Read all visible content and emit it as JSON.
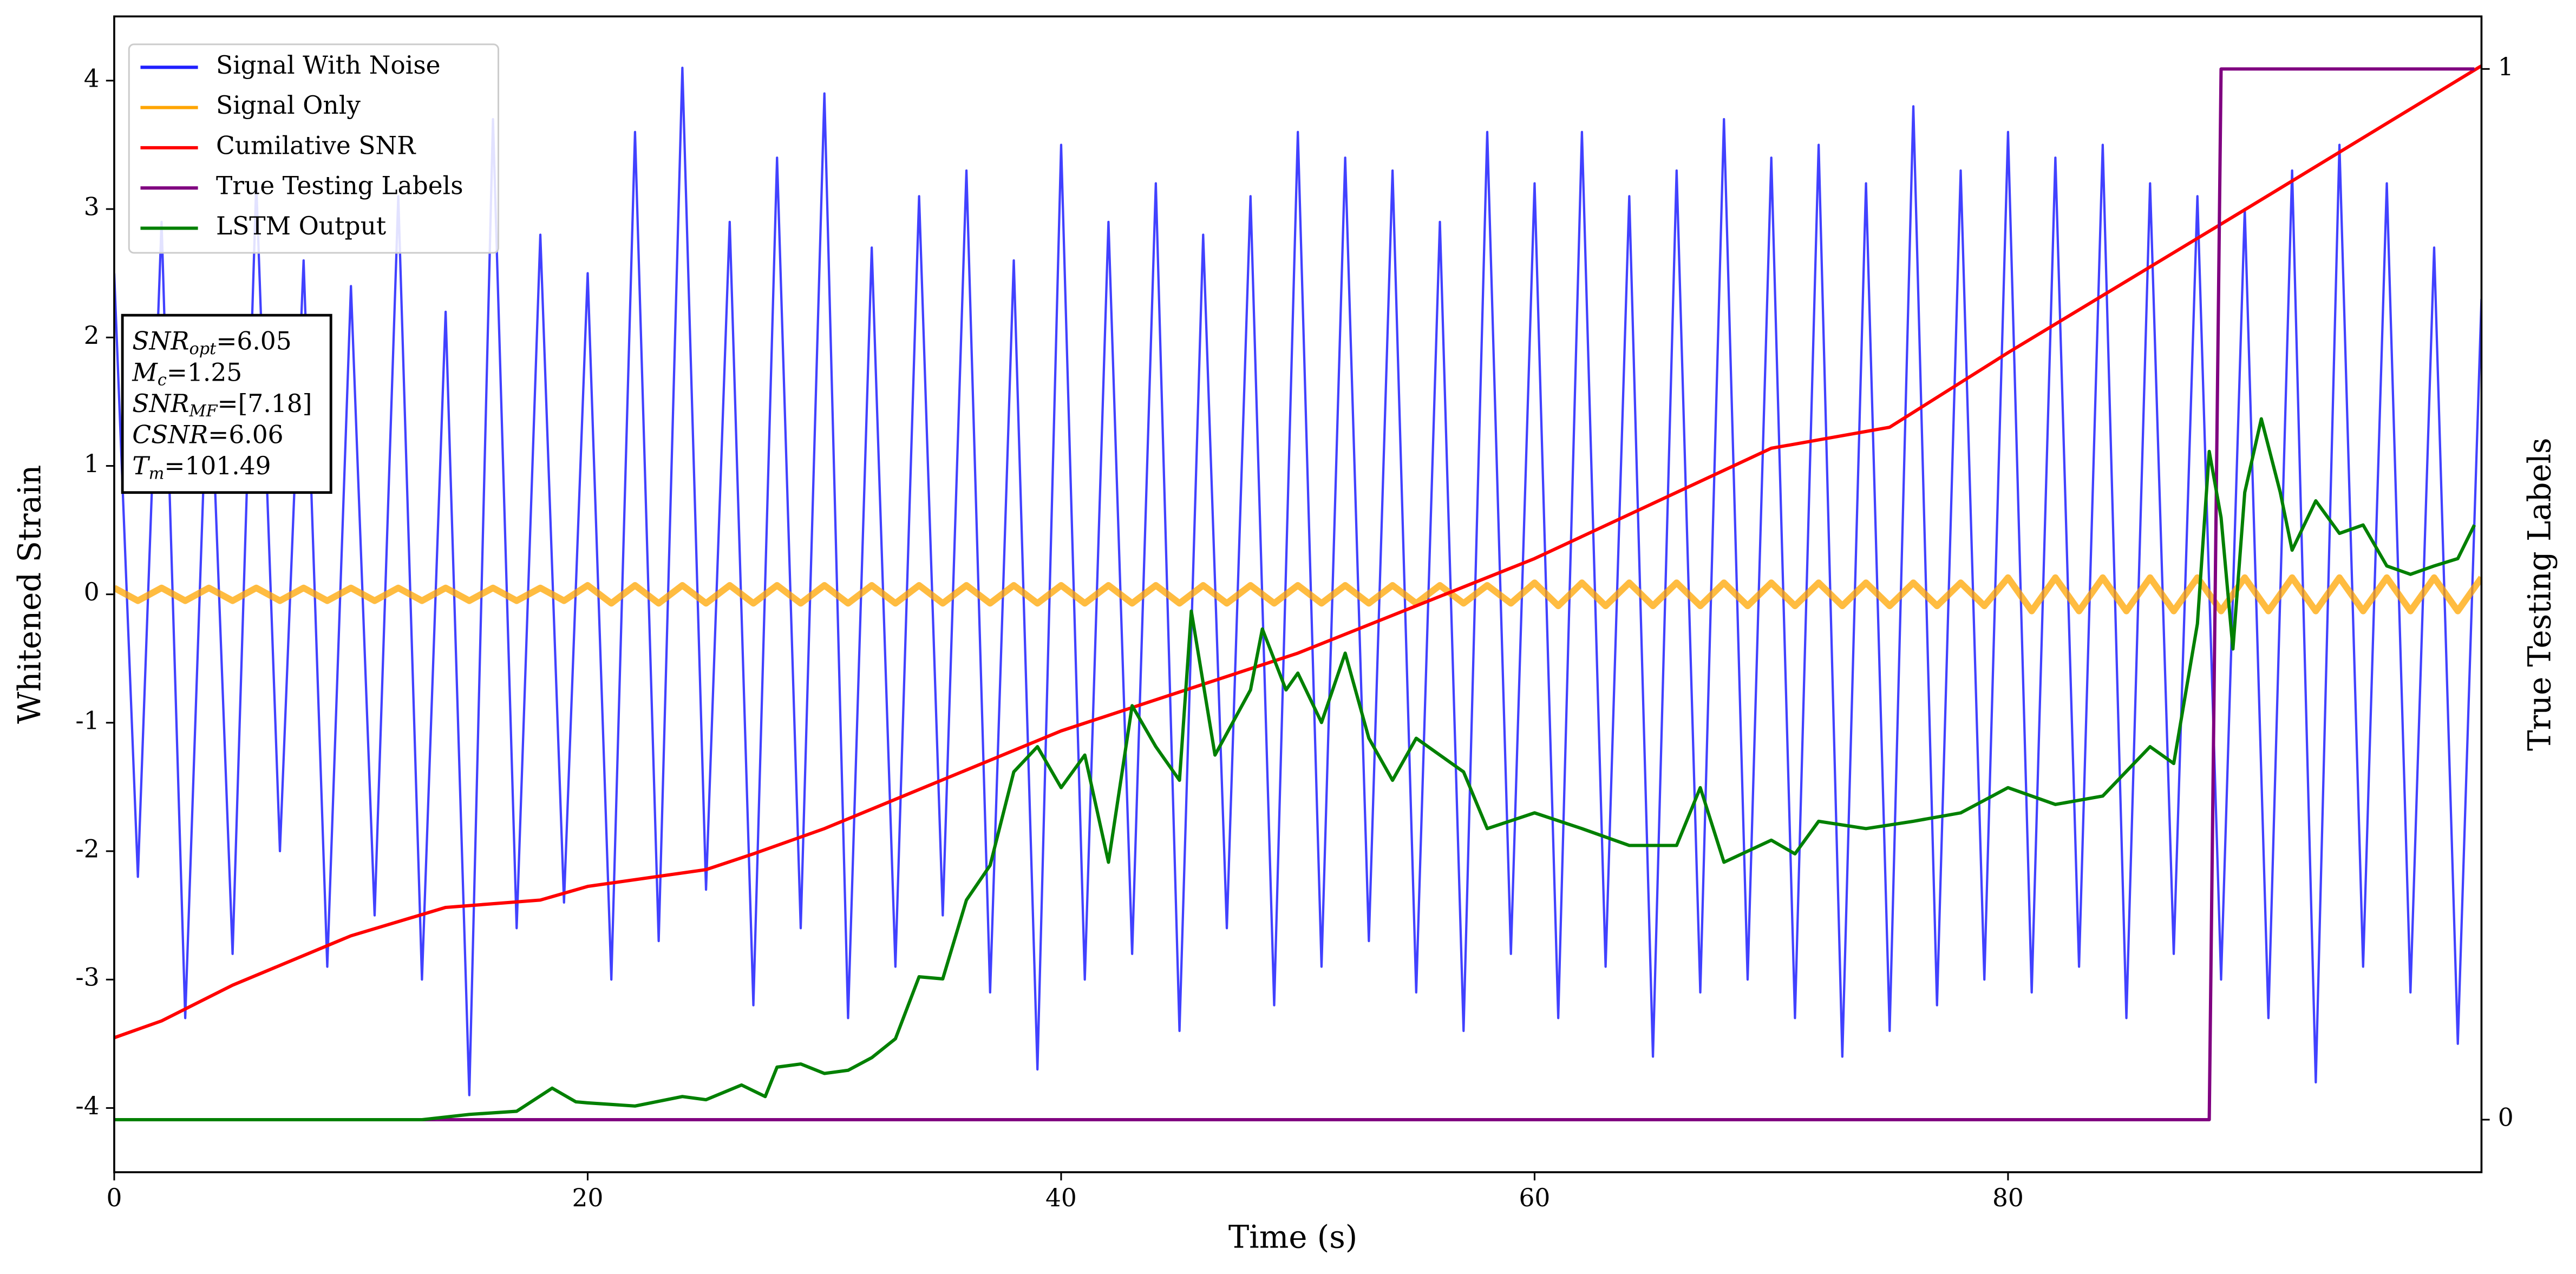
{
  "chart_data": {
    "type": "line",
    "xlabel": "Time (s)",
    "ylabel": "Whitened Strain",
    "y2label": "True Testing Labels",
    "xlim": [
      0,
      100
    ],
    "xticks": [
      0,
      20,
      40,
      60,
      80
    ],
    "ylim": [
      -4.5,
      4.5
    ],
    "yticks": [
      -4,
      -3,
      -2,
      -1,
      0,
      1,
      2,
      3,
      4
    ],
    "y2lim": [
      -0.05,
      1.05
    ],
    "y2ticks": [
      0,
      1
    ],
    "legend": "upper left",
    "series": [
      {
        "name": "Signal With Noise",
        "color": "#2020ff",
        "x": [
          0,
          1,
          2,
          3,
          4,
          5,
          6,
          7,
          8,
          9,
          10,
          11,
          12,
          13,
          14,
          15,
          16,
          17,
          18,
          19,
          20,
          21,
          22,
          23,
          24,
          25,
          26,
          27,
          28,
          29,
          30,
          31,
          32,
          33,
          34,
          35,
          36,
          37,
          38,
          39,
          40,
          41,
          42,
          43,
          44,
          45,
          46,
          47,
          48,
          49,
          50,
          51,
          52,
          53,
          54,
          55,
          56,
          57,
          58,
          59,
          60,
          61,
          62,
          63,
          64,
          65,
          66,
          67,
          68,
          69,
          70,
          71,
          72,
          73,
          74,
          75,
          76,
          77,
          78,
          79,
          80,
          81,
          82,
          83,
          84,
          85,
          86,
          87,
          88,
          89,
          90,
          91,
          92,
          93,
          94,
          95,
          96,
          97,
          98,
          99,
          100
        ],
        "values": [
          2.5,
          -2.2,
          2.9,
          -3.3,
          2.1,
          -2.8,
          3.2,
          -2.0,
          2.6,
          -2.9,
          2.4,
          -2.5,
          3.1,
          -3.0,
          2.2,
          -3.9,
          3.7,
          -2.6,
          2.8,
          -2.4,
          2.5,
          -3.0,
          3.6,
          -2.7,
          4.1,
          -2.3,
          2.9,
          -3.2,
          3.4,
          -2.6,
          3.9,
          -3.3,
          2.7,
          -2.9,
          3.1,
          -2.5,
          3.3,
          -3.1,
          2.6,
          -3.7,
          3.5,
          -3.0,
          2.9,
          -2.8,
          3.2,
          -3.4,
          2.8,
          -2.6,
          3.1,
          -3.2,
          3.6,
          -2.9,
          3.4,
          -2.7,
          3.3,
          -3.1,
          2.9,
          -3.4,
          3.6,
          -2.8,
          3.2,
          -3.3,
          3.6,
          -2.9,
          3.1,
          -3.6,
          3.3,
          -3.1,
          3.7,
          -3.0,
          3.4,
          -3.3,
          3.5,
          -3.6,
          3.2,
          -3.4,
          3.8,
          -3.2,
          3.3,
          -3.0,
          3.6,
          -3.1,
          3.4,
          -2.9,
          3.5,
          -3.3,
          3.2,
          -2.8,
          3.1,
          -3.0,
          3.0,
          -3.3,
          3.3,
          -3.8,
          3.5,
          -2.9,
          3.2,
          -3.1,
          2.7,
          -3.5,
          2.3
        ]
      },
      {
        "name": "Signal Only",
        "color": "#ffa500",
        "x": [
          0,
          1,
          2,
          3,
          4,
          5,
          6,
          7,
          8,
          9,
          10,
          11,
          12,
          13,
          14,
          15,
          16,
          17,
          18,
          19,
          20,
          21,
          22,
          23,
          24,
          25,
          26,
          27,
          28,
          29,
          30,
          31,
          32,
          33,
          34,
          35,
          36,
          37,
          38,
          39,
          40,
          41,
          42,
          43,
          44,
          45,
          46,
          47,
          48,
          49,
          50,
          51,
          52,
          53,
          54,
          55,
          56,
          57,
          58,
          59,
          60,
          61,
          62,
          63,
          64,
          65,
          66,
          67,
          68,
          69,
          70,
          71,
          72,
          73,
          74,
          75,
          76,
          77,
          78,
          79,
          80,
          81,
          82,
          83,
          84,
          85,
          86,
          87,
          88,
          89,
          90,
          91,
          92,
          93,
          94,
          95,
          96,
          97,
          98,
          99,
          100
        ],
        "values": [
          0.05,
          -0.05,
          0.05,
          -0.05,
          0.05,
          -0.05,
          0.05,
          -0.05,
          0.05,
          -0.05,
          0.05,
          -0.05,
          0.05,
          -0.05,
          0.05,
          -0.05,
          0.05,
          -0.05,
          0.05,
          -0.05,
          0.07,
          -0.07,
          0.07,
          -0.07,
          0.07,
          -0.07,
          0.07,
          -0.07,
          0.07,
          -0.07,
          0.07,
          -0.07,
          0.07,
          -0.07,
          0.07,
          -0.07,
          0.07,
          -0.07,
          0.07,
          -0.07,
          0.07,
          -0.07,
          0.07,
          -0.07,
          0.07,
          -0.07,
          0.07,
          -0.07,
          0.07,
          -0.07,
          0.07,
          -0.07,
          0.07,
          -0.07,
          0.07,
          -0.07,
          0.07,
          -0.07,
          0.07,
          -0.07,
          0.09,
          -0.09,
          0.09,
          -0.09,
          0.09,
          -0.09,
          0.09,
          -0.09,
          0.09,
          -0.09,
          0.09,
          -0.09,
          0.09,
          -0.09,
          0.09,
          -0.09,
          0.09,
          -0.09,
          0.09,
          -0.09,
          0.13,
          -0.13,
          0.13,
          -0.13,
          0.13,
          -0.13,
          0.13,
          -0.13,
          0.13,
          -0.13,
          0.13,
          -0.13,
          0.13,
          -0.13,
          0.13,
          -0.13,
          0.13,
          -0.13,
          0.13,
          -0.13,
          0.13
        ]
      },
      {
        "name": "Cumilative SNR",
        "color": "#ff0000",
        "axis": "y2",
        "x": [
          0,
          2,
          5,
          10,
          14,
          18,
          20,
          25,
          27,
          30,
          40,
          50,
          60,
          70,
          75,
          80,
          90,
          100
        ],
        "values": [
          0.078,
          0.094,
          0.128,
          0.175,
          0.202,
          0.209,
          0.222,
          0.238,
          0.253,
          0.277,
          0.37,
          0.444,
          0.534,
          0.639,
          0.659,
          0.73,
          0.866,
          1.003
        ]
      },
      {
        "name": "True Testing Labels",
        "color": "#800080",
        "axis": "y2",
        "x": [
          0,
          88.5,
          89,
          99.7
        ],
        "values": [
          0,
          0,
          1,
          1
        ]
      },
      {
        "name": "LSTM Output",
        "color": "#008000",
        "axis": "y2",
        "x": [
          0,
          13,
          15,
          17,
          18.5,
          19.5,
          20,
          22,
          24,
          25,
          26.5,
          27.5,
          28,
          29,
          30,
          31,
          32,
          33,
          34,
          35,
          36,
          37,
          38,
          39,
          40,
          41,
          42,
          43,
          44,
          45,
          45.5,
          46.5,
          48,
          48.5,
          49.5,
          50,
          51,
          52,
          53,
          54,
          55,
          57,
          58,
          60,
          62,
          64,
          66,
          67,
          68,
          70,
          71,
          72,
          74,
          76,
          78,
          80,
          82,
          84,
          86,
          87,
          88,
          88.5,
          89,
          89.5,
          90,
          90.7,
          91.5,
          92,
          93,
          94,
          95,
          96,
          97,
          98,
          99,
          99.7
        ],
        "values": [
          0,
          0,
          0.005,
          0.008,
          0.03,
          0.017,
          0.016,
          0.013,
          0.022,
          0.019,
          0.033,
          0.022,
          0.05,
          0.053,
          0.044,
          0.047,
          0.059,
          0.077,
          0.136,
          0.134,
          0.209,
          0.242,
          0.331,
          0.355,
          0.316,
          0.347,
          0.245,
          0.394,
          0.355,
          0.323,
          0.484,
          0.347,
          0.409,
          0.467,
          0.409,
          0.425,
          0.378,
          0.444,
          0.363,
          0.323,
          0.363,
          0.331,
          0.277,
          0.292,
          0.277,
          0.261,
          0.261,
          0.316,
          0.245,
          0.266,
          0.253,
          0.284,
          0.277,
          0.284,
          0.292,
          0.316,
          0.3,
          0.308,
          0.355,
          0.339,
          0.472,
          0.636,
          0.573,
          0.448,
          0.597,
          0.667,
          0.597,
          0.542,
          0.589,
          0.558,
          0.566,
          0.527,
          0.519,
          0.527,
          0.534,
          0.566
        ]
      }
    ],
    "annotations": [
      {
        "text": "SNR",
        "sub": "opt",
        "rest": "=6.05"
      },
      {
        "text": "M",
        "sub": "c",
        "rest": "=1.25"
      },
      {
        "text": "SNR",
        "sub": "MF",
        "rest": "=[7.18]"
      },
      {
        "text": "CSNR",
        "rest": "=6.06"
      },
      {
        "text": "T",
        "sub": "m",
        "rest": "=101.49"
      }
    ]
  }
}
